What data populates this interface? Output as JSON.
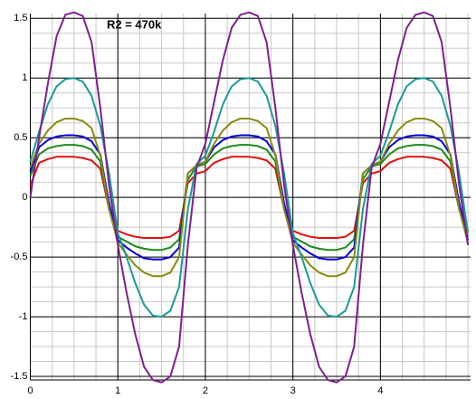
{
  "chart_data": {
    "type": "line",
    "annotation": "R2 = 470k",
    "x": [
      0,
      0.1,
      0.2,
      0.3,
      0.4,
      0.5,
      0.6,
      0.7,
      0.8,
      0.9,
      1,
      1.1,
      1.2,
      1.3,
      1.4,
      1.5,
      1.6,
      1.7,
      1.8,
      1.9,
      2,
      2.1,
      2.2,
      2.3,
      2.4,
      2.5,
      2.6,
      2.7,
      2.8,
      2.9,
      3,
      3.1,
      3.2,
      3.3,
      3.4,
      3.5,
      3.6,
      3.7,
      3.8,
      3.9,
      4,
      4.1,
      4.2,
      4.3,
      4.4,
      4.5,
      4.6,
      4.7,
      4.8,
      4.9,
      5
    ],
    "series": [
      {
        "color": "#e01010",
        "values": [
          0.1,
          0.29,
          0.32,
          0.34,
          0.34,
          0.34,
          0.33,
          0.31,
          0.24,
          -0.1,
          -0.28,
          -0.31,
          -0.33,
          -0.34,
          -0.34,
          -0.34,
          -0.33,
          -0.28,
          0.12,
          0.2,
          0.22,
          0.29,
          0.32,
          0.34,
          0.34,
          0.34,
          0.33,
          0.31,
          0.24,
          -0.1,
          -0.28,
          -0.31,
          -0.33,
          -0.34,
          -0.34,
          -0.34,
          -0.33,
          -0.28,
          0.12,
          0.2,
          0.22,
          0.29,
          0.32,
          0.34,
          0.34,
          0.34,
          0.33,
          0.31,
          0.24,
          -0.1,
          -0.28
        ]
      },
      {
        "color": "#1a8a1a",
        "values": [
          0.18,
          0.36,
          0.41,
          0.43,
          0.44,
          0.44,
          0.43,
          0.4,
          0.3,
          -0.1,
          -0.33,
          -0.37,
          -0.41,
          -0.43,
          -0.44,
          -0.44,
          -0.42,
          -0.35,
          0.15,
          0.26,
          0.28,
          0.36,
          0.41,
          0.43,
          0.44,
          0.44,
          0.43,
          0.4,
          0.3,
          -0.1,
          -0.33,
          -0.37,
          -0.41,
          -0.43,
          -0.44,
          -0.44,
          -0.42,
          -0.35,
          0.15,
          0.26,
          0.28,
          0.36,
          0.41,
          0.43,
          0.44,
          0.44,
          0.43,
          0.4,
          0.3,
          -0.1,
          -0.33
        ]
      },
      {
        "color": "#0000e0",
        "values": [
          0.22,
          0.42,
          0.48,
          0.51,
          0.52,
          0.52,
          0.51,
          0.47,
          0.36,
          -0.05,
          -0.36,
          -0.42,
          -0.47,
          -0.51,
          -0.52,
          -0.52,
          -0.5,
          -0.42,
          0.2,
          0.27,
          0.3,
          0.42,
          0.48,
          0.51,
          0.52,
          0.52,
          0.51,
          0.47,
          0.36,
          -0.05,
          -0.36,
          -0.42,
          -0.47,
          -0.51,
          -0.52,
          -0.52,
          -0.5,
          -0.42,
          0.2,
          0.27,
          0.3,
          0.42,
          0.48,
          0.51,
          0.52,
          0.52,
          0.51,
          0.47,
          0.36,
          -0.05,
          -0.36
        ]
      },
      {
        "color": "#8a8a10",
        "values": [
          0.25,
          0.45,
          0.56,
          0.63,
          0.66,
          0.66,
          0.64,
          0.58,
          0.35,
          -0.1,
          -0.38,
          -0.48,
          -0.57,
          -0.63,
          -0.66,
          -0.66,
          -0.63,
          -0.5,
          0.2,
          0.27,
          0.3,
          0.45,
          0.56,
          0.63,
          0.66,
          0.66,
          0.64,
          0.58,
          0.35,
          -0.1,
          -0.38,
          -0.48,
          -0.57,
          -0.63,
          -0.66,
          -0.66,
          -0.63,
          -0.5,
          0.2,
          0.27,
          0.3,
          0.45,
          0.56,
          0.63,
          0.66,
          0.66,
          0.64,
          0.58,
          0.35,
          -0.1,
          -0.38
        ]
      },
      {
        "color": "#1a9a9a",
        "values": [
          0.3,
          0.55,
          0.78,
          0.93,
          0.99,
          1.0,
          0.97,
          0.85,
          0.6,
          0.2,
          -0.3,
          -0.5,
          -0.72,
          -0.9,
          -0.99,
          -1.0,
          -0.95,
          -0.75,
          -0.1,
          0.28,
          0.35,
          0.55,
          0.78,
          0.93,
          0.99,
          1.0,
          0.97,
          0.85,
          0.6,
          0.2,
          -0.3,
          -0.5,
          -0.72,
          -0.9,
          -0.99,
          -1.0,
          -0.95,
          -0.75,
          -0.1,
          0.28,
          0.35,
          0.55,
          0.78,
          0.93,
          0.99,
          1.0,
          0.97,
          0.85,
          0.6,
          0.2,
          -0.3
        ]
      },
      {
        "color": "#7f1f8f",
        "values": [
          0,
          0.5,
          0.95,
          1.35,
          1.53,
          1.55,
          1.52,
          1.3,
          0.75,
          0.1,
          -0.4,
          -0.8,
          -1.15,
          -1.42,
          -1.53,
          -1.55,
          -1.5,
          -1.25,
          -0.4,
          0.25,
          0.45,
          0.8,
          1.15,
          1.42,
          1.53,
          1.55,
          1.52,
          1.3,
          0.75,
          0.1,
          -0.4,
          -0.8,
          -1.15,
          -1.42,
          -1.53,
          -1.55,
          -1.5,
          -1.25,
          -0.4,
          0.25,
          0.45,
          0.8,
          1.15,
          1.42,
          1.53,
          1.55,
          1.52,
          1.3,
          0.75,
          0.1,
          -0.4
        ]
      }
    ],
    "xlim": [
      0,
      5.03
    ],
    "ylim": [
      -1.53,
      1.54
    ],
    "xticks": [
      0,
      1,
      2,
      3,
      4
    ],
    "yticks": [
      1.5,
      1,
      0.5,
      0,
      -0.5,
      -1,
      -1.5
    ],
    "grid": true,
    "minor_grid_divisions": 4
  }
}
